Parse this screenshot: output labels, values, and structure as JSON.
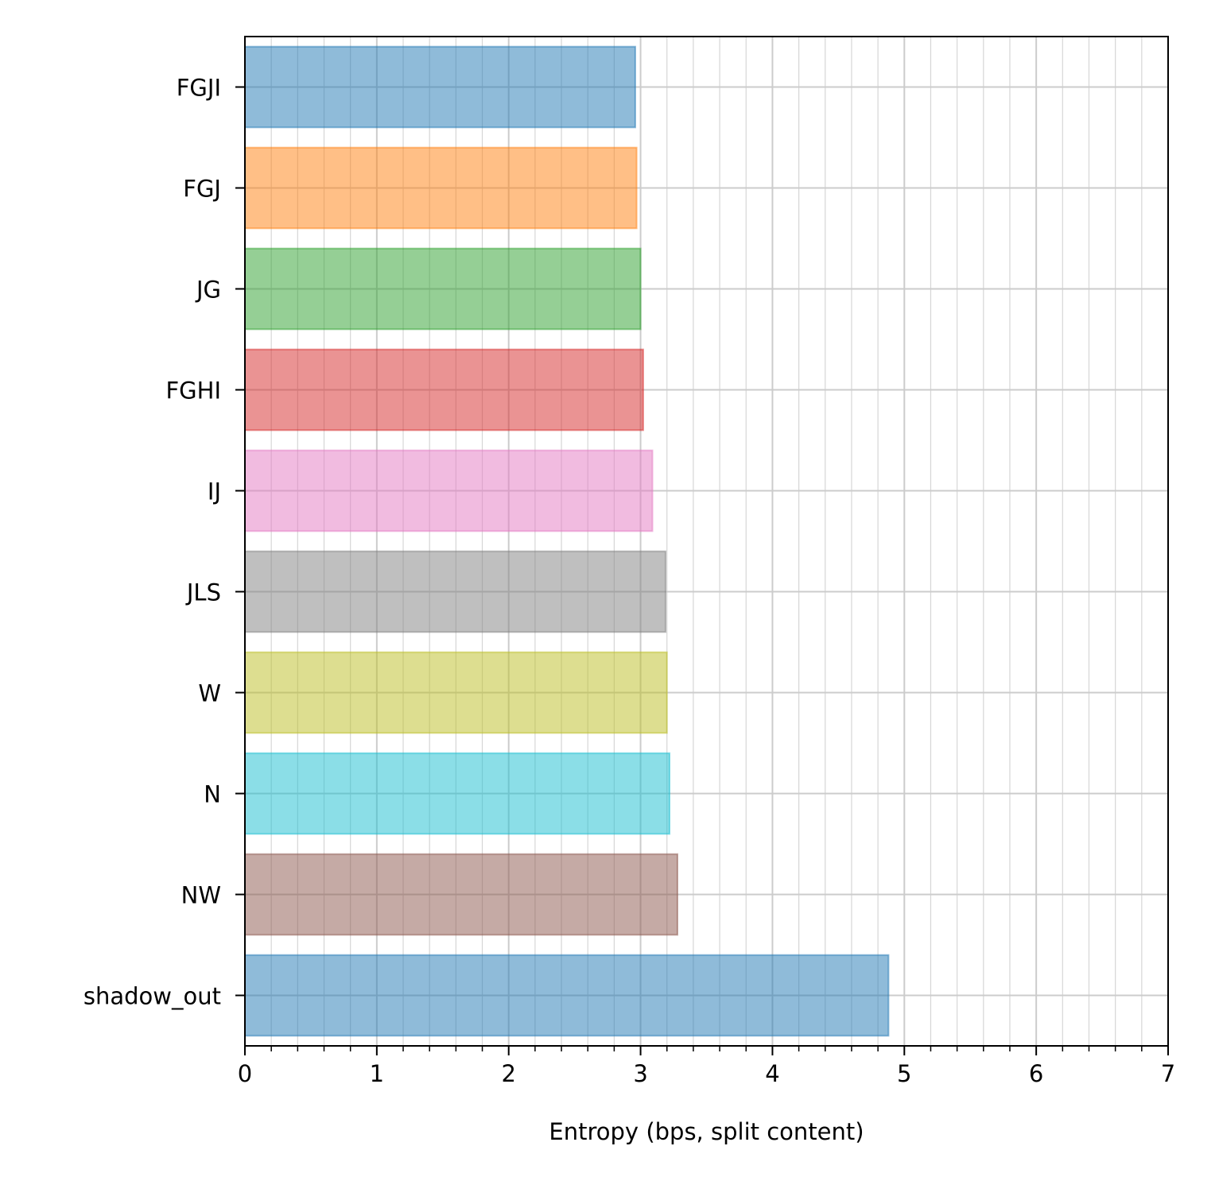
{
  "chart_data": {
    "type": "bar",
    "orientation": "horizontal",
    "categories": [
      "FGJI",
      "FGJ",
      "JG",
      "FGHI",
      "IJ",
      "JLS",
      "W",
      "N",
      "NW",
      "shadow_out"
    ],
    "values": [
      2.96,
      2.97,
      3.0,
      3.02,
      3.09,
      3.19,
      3.2,
      3.22,
      3.28,
      4.88
    ],
    "colors": [
      "#1f77b4",
      "#ff7f0e",
      "#2ca02c",
      "#d62728",
      "#e377c2",
      "#7f7f7f",
      "#bcbd22",
      "#17becf",
      "#8c564b",
      "#1f77b4"
    ],
    "bar_opacity": 0.5,
    "xlabel": "Entropy (bps, split content)",
    "ylabel": "",
    "xlim": [
      0,
      7
    ],
    "x_ticks": [
      "0",
      "1",
      "2",
      "3",
      "4",
      "5",
      "6",
      "7"
    ],
    "minor_tick_step": 0.2,
    "grid": true,
    "grid_color": "#cccccc",
    "legend": "none"
  }
}
